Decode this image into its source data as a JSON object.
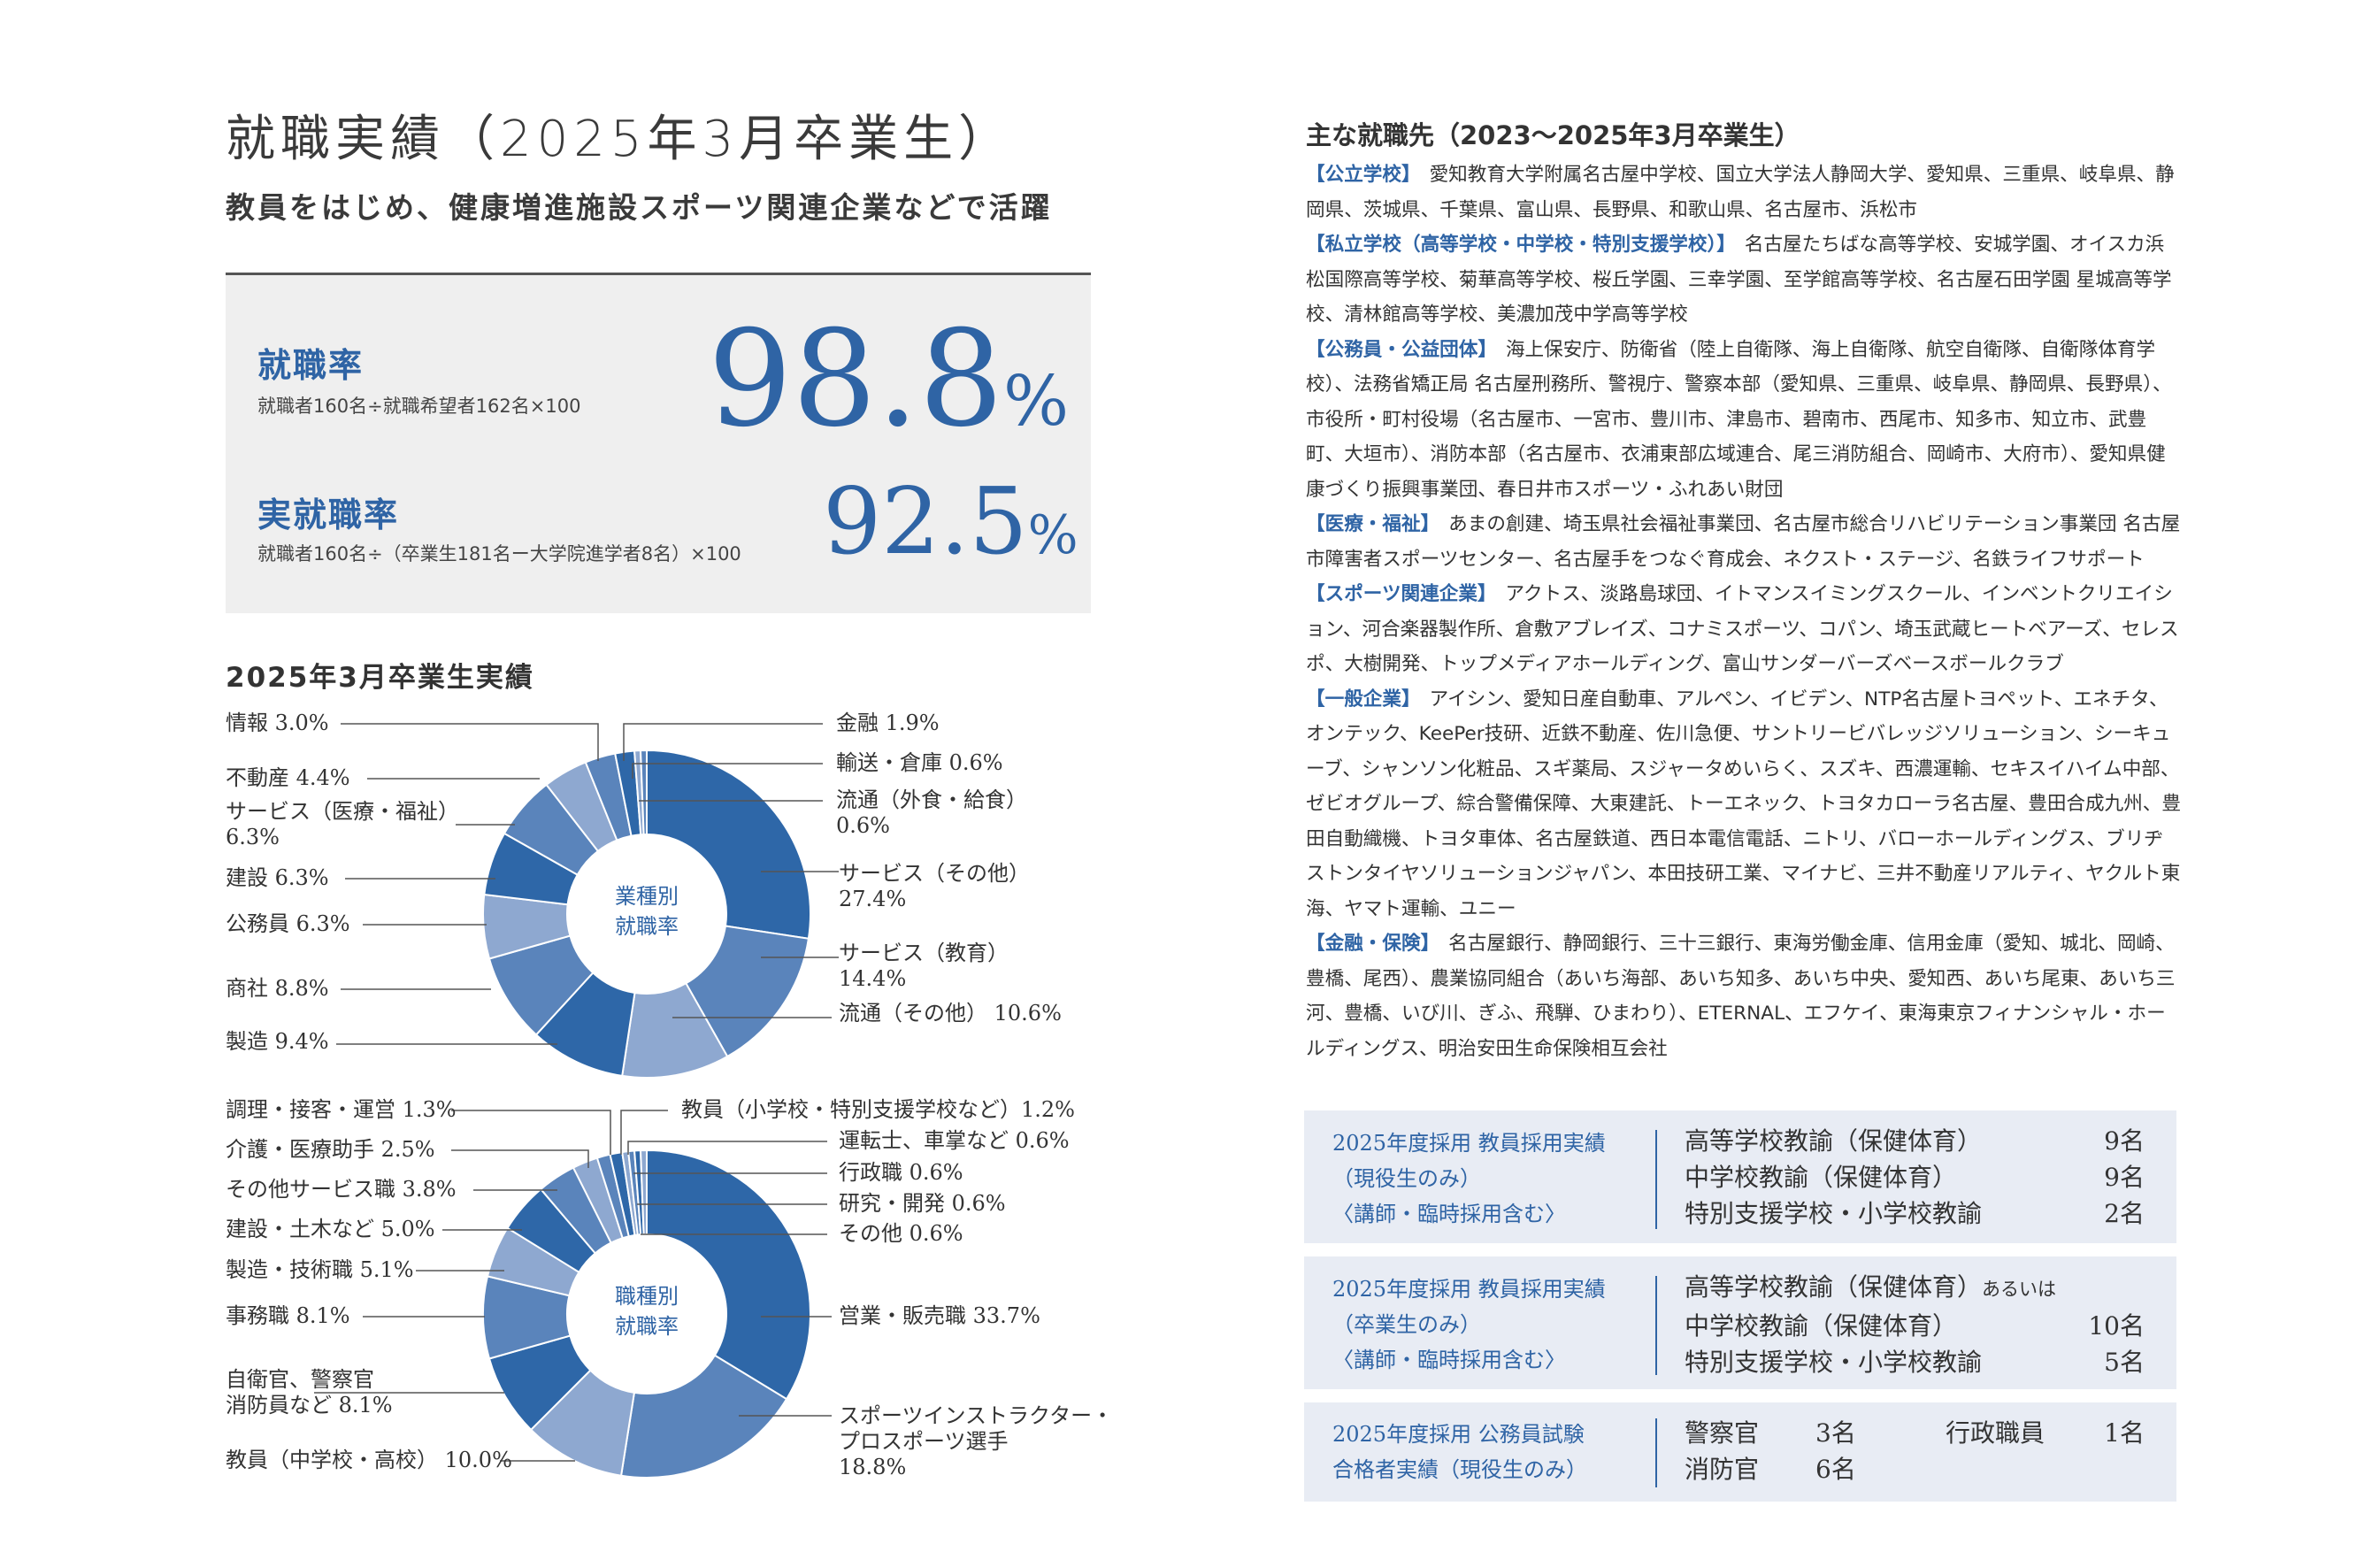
{
  "title": "就職実績（2025年3月卒業生）",
  "subtitle": "教員をはじめ、健康増進施設スポーツ関連企業などで活躍",
  "rates": [
    {
      "label": "就職率",
      "formula": "就職者160名÷就職希望者162名×100",
      "number": "98.8",
      "unit": "%"
    },
    {
      "label": "実就職率",
      "formula": "就職者160名÷（卒業生181名ー大学院進学者8名）×100",
      "number": "92.5",
      "unit": "%"
    }
  ],
  "chart_section_title": "2025年3月卒業生実績",
  "chart_data": [
    {
      "type": "pie",
      "center_label": [
        "業種別",
        "就職率"
      ],
      "unit": "%",
      "slices": [
        {
          "label": "サービス（その他）",
          "value": 27.4
        },
        {
          "label": "サービス（教育）",
          "value": 14.4
        },
        {
          "label": "流通（その他）",
          "value": 10.6
        },
        {
          "label": "製造",
          "value": 9.4
        },
        {
          "label": "商社",
          "value": 8.8
        },
        {
          "label": "公務員",
          "value": 6.3
        },
        {
          "label": "建設",
          "value": 6.3
        },
        {
          "label": "サービス（医療・福祉）",
          "value": 6.3
        },
        {
          "label": "不動産",
          "value": 4.4
        },
        {
          "label": "情報",
          "value": 3.0
        },
        {
          "label": "金融",
          "value": 1.9
        },
        {
          "label": "輸送・倉庫",
          "value": 0.6
        },
        {
          "label": "流通（外食・給食）",
          "value": 0.6
        }
      ],
      "label_texts": [
        "サービス（その他）",
        "27.4%",
        "サービス（教育）",
        "14.4%",
        "流通（その他） 10.6%",
        "製造 9.4%",
        "商社 8.8%",
        "公務員 6.3%",
        "建設 6.3%",
        "サービス（医療・福祉）",
        "6.3%",
        "不動産 4.4%",
        "情報 3.0%",
        "金融 1.9%",
        "輸送・倉庫 0.6%",
        "流通（外食・給食）",
        "0.6%"
      ]
    },
    {
      "type": "pie",
      "center_label": [
        "職種別",
        "就職率"
      ],
      "unit": "%",
      "slices": [
        {
          "label": "営業・販売職",
          "value": 33.7
        },
        {
          "label": "スポーツインストラクター・プロスポーツ選手",
          "value": 18.8
        },
        {
          "label": "教員（中学校・高校）",
          "value": 10.0
        },
        {
          "label": "自衛官、警察官消防員など",
          "value": 8.1
        },
        {
          "label": "事務職",
          "value": 8.1
        },
        {
          "label": "製造・技術職",
          "value": 5.1
        },
        {
          "label": "建設・土木など",
          "value": 5.0
        },
        {
          "label": "その他サービス職",
          "value": 3.8
        },
        {
          "label": "介護・医療助手",
          "value": 2.5
        },
        {
          "label": "調理・接客・運営",
          "value": 1.3
        },
        {
          "label": "教員（小学校・特別支援学校など）",
          "value": 1.2
        },
        {
          "label": "運転士、車掌など",
          "value": 0.6
        },
        {
          "label": "行政職",
          "value": 0.6
        },
        {
          "label": "研究・開発",
          "value": 0.6
        },
        {
          "label": "その他",
          "value": 0.6
        }
      ],
      "label_texts": [
        "営業・販売職 33.7%",
        "スポーツインストラクター・",
        "プロスポーツ選手",
        "18.8%",
        "教員（中学校・高校） 10.0%",
        "自衛官、警察官",
        "消防員など 8.1%",
        "事務職 8.1%",
        "製造・技術職 5.1%",
        "建設・土木など 5.0%",
        "その他サービス職 3.8%",
        "介護・医療助手 2.5%",
        "調理・接客・運営 1.3%",
        "教員（小学校・特別支援学校など）1.2%",
        "運転士、車掌など 0.6%",
        "行政職 0.6%",
        "研究・開発 0.6%",
        "その他 0.6%"
      ]
    }
  ],
  "colors": {
    "accent": "#2f64a5",
    "dark": "#2e67a8",
    "mid": "#5a84bb",
    "light": "#8ea8d0",
    "box_bg": "#efefef",
    "hire_bg": "#e8ecf4"
  },
  "employers_title": "主な就職先（2023〜2025年3月卒業生）",
  "employers": [
    {
      "category": "【公立学校】",
      "text": "愛知教育大学附属名古屋中学校、国立大学法人静岡大学、愛知県、三重県、岐阜県、静岡県、茨城県、千葉県、富山県、長野県、和歌山県、名古屋市、浜松市"
    },
    {
      "category": "【私立学校（高等学校・中学校・特別支援学校）】",
      "text": "名古屋たちばな高等学校、安城学園、オイスカ浜松国際高等学校、菊華高等学校、桜丘学園、三幸学園、至学館高等学校、名古屋石田学園 星城高等学校、清林館高等学校、美濃加茂中学高等学校"
    },
    {
      "category": "【公務員・公益団体】",
      "text": "海上保安庁、防衛省（陸上自衛隊、海上自衛隊、航空自衛隊、自衛隊体育学校）、法務省矯正局 名古屋刑務所、警視庁、警察本部（愛知県、三重県、岐阜県、静岡県、長野県）、市役所・町村役場（名古屋市、一宮市、豊川市、津島市、碧南市、西尾市、知多市、知立市、武豊町、大垣市）、消防本部（名古屋市、衣浦東部広域連合、尾三消防組合、岡崎市、大府市）、愛知県健康づくり振興事業団、春日井市スポーツ・ふれあい財団"
    },
    {
      "category": "【医療・福祉】",
      "text": "あまの創建、埼玉県社会福祉事業団、名古屋市総合リハビリテーション事業団 名古屋市障害者スポーツセンター、名古屋手をつなぐ育成会、ネクスト・ステージ、名鉄ライフサポート"
    },
    {
      "category": "【スポーツ関連企業】",
      "text": "アクトス、淡路島球団、イトマンスイミングスクール、インベントクリエイション、河合楽器製作所、倉敷アブレイズ、コナミスポーツ、コパン、埼玉武蔵ヒートベアーズ、セレスポ、大樹開発、トップメディアホールディング、富山サンダーバーズベースボールクラブ"
    },
    {
      "category": "【一般企業】",
      "text": "アイシン、愛知日産自動車、アルペン、イビデン、NTP名古屋トヨペット、エネチタ、オンテック、KeePer技研、近鉄不動産、佐川急便、サントリービバレッジソリューション、シーキューブ、シャンソン化粧品、スギ薬局、スジャータめいらく、スズキ、西濃運輸、セキスイハイム中部、ゼビオグループ、綜合警備保障、大東建託、トーエネック、トヨタカローラ名古屋、豊田合成九州、豊田自動織機、トヨタ車体、名古屋鉄道、西日本電信電話、ニトリ、バローホールディングス、ブリヂストンタイヤソリューションジャパン、本田技研工業、マイナビ、三井不動産リアルティ、ヤクルト東海、ヤマト運輸、ユニー"
    },
    {
      "category": "【金融・保険】",
      "text": "名古屋銀行、静岡銀行、三十三銀行、東海労働金庫、信用金庫（愛知、城北、岡崎、豊橋、尾西）、農業協同組合（あいち海部、あいち知多、あいち中央、愛知西、あいち尾東、あいち三河、豊橋、いび川、ぎふ、飛騨、ひまわり）、ETERNAL、エフケイ、東海東京フィナンシャル・ホールディングス、明治安田生命保険相互会社"
    }
  ],
  "hiring": [
    {
      "left": [
        "2025年度採用 教員採用実績",
        "（現役生のみ）",
        "〈講師・臨時採用含む〉"
      ],
      "rows": [
        {
          "label": "高等学校教諭（保健体育）",
          "count": "9名"
        },
        {
          "label": "中学校教諭（保健体育）",
          "count": "9名"
        },
        {
          "label": "特別支援学校・小学校教諭",
          "count": "2名"
        }
      ]
    },
    {
      "left": [
        "2025年度採用 教員採用実績",
        "（卒業生のみ）",
        "〈講師・臨時採用含む〉"
      ],
      "row1_main": "高等学校教諭（保健体育）",
      "row1_small": "あるいは",
      "rows": [
        {
          "label": "中学校教諭（保健体育）",
          "count": "10名"
        },
        {
          "label": "特別支援学校・小学校教諭",
          "count": "5名"
        }
      ]
    },
    {
      "left": [
        "2025年度採用 公務員試験",
        "合格者実績（現役生のみ）"
      ],
      "items": [
        {
          "label": "警察官",
          "count": "3名"
        },
        {
          "label": "行政職員",
          "count": "1名"
        },
        {
          "label": "消防官",
          "count": "6名"
        }
      ]
    }
  ]
}
